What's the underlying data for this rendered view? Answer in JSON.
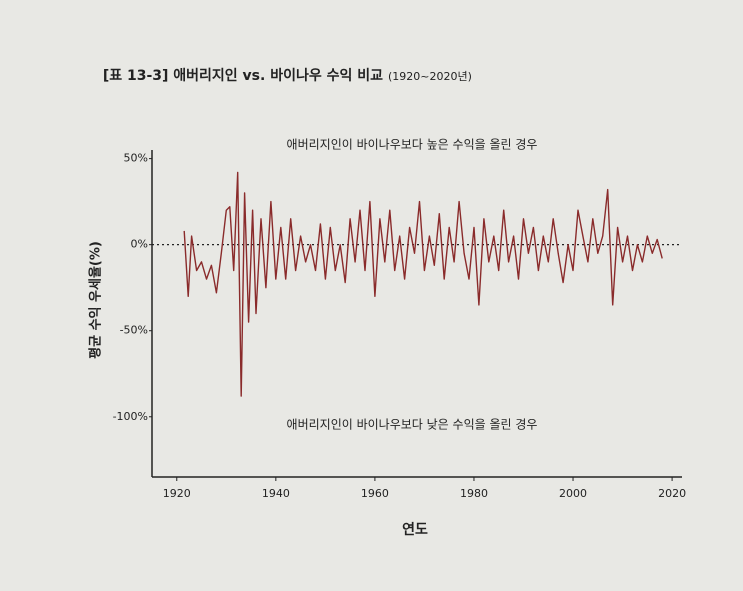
{
  "chart_data": {
    "type": "line",
    "title": "[표 13-3] 애버리지인 vs. 바이나우 수익 비교",
    "subtitle": "(1920~2020년)",
    "x_label": "연도",
    "y_label": "평균 수익 우세율(%)",
    "annotations": [
      "애버리지인이 바이나우보다 높은 수익을 올린 경우",
      "애버리지인이 바이나우보다 낮은 수익을 올린 경우"
    ],
    "xlim": [
      1915,
      2022
    ],
    "ylim": [
      -135,
      55
    ],
    "xticks": [
      1920,
      1940,
      1960,
      1980,
      2000,
      2020
    ],
    "yticks": [
      {
        "value": 50,
        "label": "50%"
      },
      {
        "value": 0,
        "label": "0%"
      },
      {
        "value": -50,
        "label": "-50%"
      },
      {
        "value": -100,
        "label": "-100%"
      }
    ],
    "hline": 0,
    "color": "#8a2b2b",
    "x": [
      1921.5,
      1922.3,
      1923,
      1924,
      1925,
      1926,
      1927,
      1928,
      1929,
      1930,
      1930.7,
      1931.5,
      1932.3,
      1933,
      1933.7,
      1934.5,
      1935.3,
      1936,
      1937,
      1938,
      1939,
      1940,
      1941,
      1942,
      1943,
      1944,
      1945,
      1946,
      1947,
      1948,
      1949,
      1950,
      1951,
      1952,
      1953,
      1954,
      1955,
      1956,
      1957,
      1958,
      1959,
      1960,
      1961,
      1962,
      1963,
      1964,
      1965,
      1966,
      1967,
      1968,
      1969,
      1970,
      1971,
      1972,
      1973,
      1974,
      1975,
      1976,
      1977,
      1978,
      1979,
      1980,
      1981,
      1982,
      1983,
      1984,
      1985,
      1986,
      1987,
      1988,
      1989,
      1990,
      1991,
      1992,
      1993,
      1994,
      1995,
      1996,
      1997,
      1998,
      1999,
      2000,
      2001,
      2002,
      2003,
      2004,
      2005,
      2006,
      2007,
      2008,
      2009,
      2010,
      2011,
      2012,
      2013,
      2014,
      2015,
      2016,
      2017,
      2018
    ],
    "values": [
      8,
      -30,
      5,
      -15,
      -10,
      -20,
      -12,
      -28,
      -5,
      20,
      22,
      -15,
      42,
      -88,
      30,
      -45,
      20,
      -40,
      15,
      -25,
      25,
      -20,
      10,
      -20,
      15,
      -15,
      5,
      -10,
      0,
      -15,
      12,
      -20,
      10,
      -15,
      0,
      -22,
      15,
      -10,
      20,
      -15,
      25,
      -30,
      15,
      -10,
      20,
      -15,
      5,
      -20,
      10,
      -5,
      25,
      -15,
      5,
      -12,
      18,
      -20,
      10,
      -10,
      25,
      -5,
      -20,
      10,
      -35,
      15,
      -10,
      5,
      -15,
      20,
      -10,
      5,
      -20,
      15,
      -5,
      10,
      -15,
      5,
      -10,
      15,
      -5,
      -22,
      0,
      -15,
      20,
      5,
      -10,
      15,
      -5,
      5,
      32,
      -35,
      10,
      -10,
      5,
      -15,
      0,
      -10,
      5,
      -5,
      3,
      -8
    ]
  }
}
